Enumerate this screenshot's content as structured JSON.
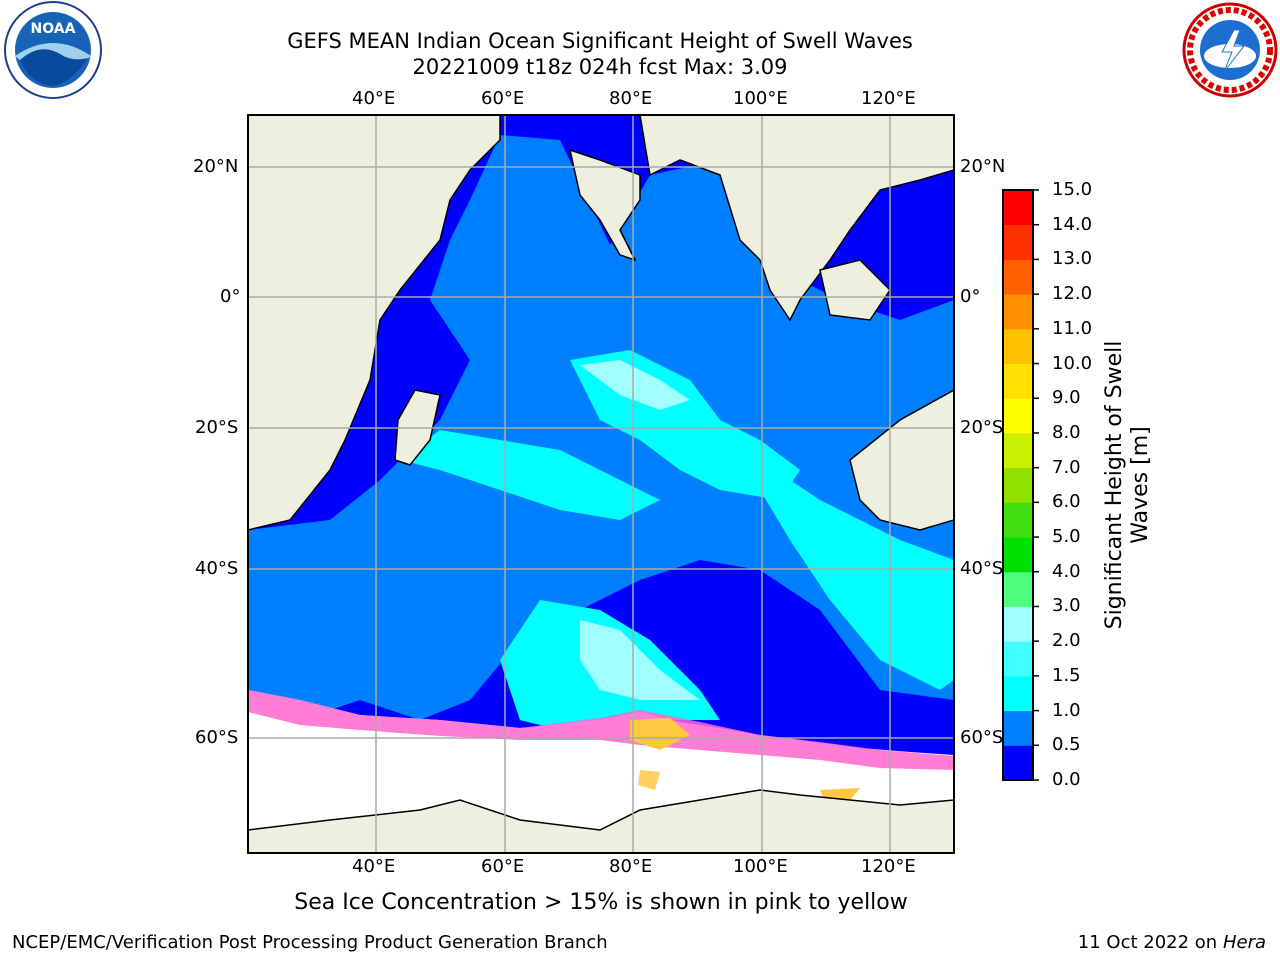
{
  "title_line1": "GEFS MEAN Indian Ocean Significant Height of Swell Waves",
  "title_line2": "20221009 t18z 024h fcst   Max: 3.09",
  "lon_ticks": [
    "40°E",
    "60°E",
    "80°E",
    "100°E",
    "120°E"
  ],
  "lat_ticks_left": [
    "20°N",
    "0°",
    "20°S",
    "40°S",
    "60°S"
  ],
  "lat_ticks_right": [
    "20°N",
    "0°",
    "20°S",
    "40°S",
    "60°S"
  ],
  "colorbar": {
    "label": "Significant Height of Swell Waves [m]",
    "ticks": [
      "0.0",
      "0.5",
      "1.0",
      "1.5",
      "2.0",
      "3.0",
      "4.0",
      "5.0",
      "6.0",
      "7.0",
      "8.0",
      "9.0",
      "10.0",
      "11.0",
      "12.0",
      "13.0",
      "14.0",
      "15.0"
    ],
    "colors": [
      "#0000ff",
      "#0080ff",
      "#00ffff",
      "#40ffff",
      "#a0ffff",
      "#50ff80",
      "#00e000",
      "#40e010",
      "#90e000",
      "#c8f000",
      "#ffff00",
      "#ffe000",
      "#ffc000",
      "#ff9000",
      "#ff6000",
      "#ff3000",
      "#ff0000"
    ]
  },
  "caption": "Sea Ice Concentration > 15% is shown in pink to yellow",
  "footer_left": "NCEP/EMC/Verification Post Processing Product Generation Branch",
  "footer_right_date": "11 Oct 2022 on ",
  "footer_right_host": "Hera",
  "logos": {
    "left": "NOAA",
    "right": "NATIONAL WEATHER SERVICE"
  }
}
